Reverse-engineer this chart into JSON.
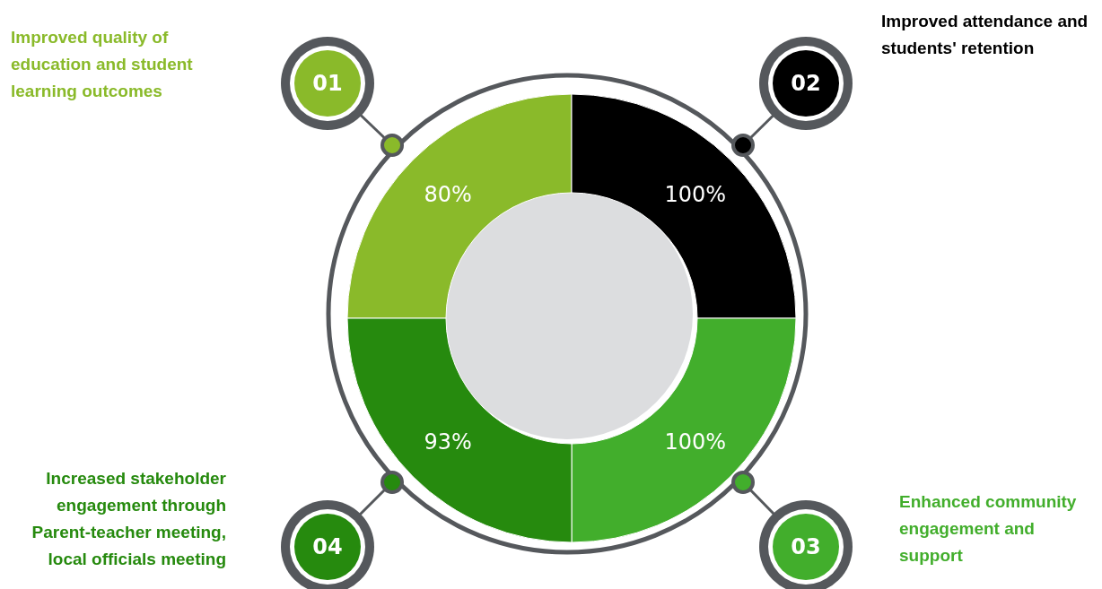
{
  "chart_data": {
    "type": "other",
    "categories": [
      "Improved quality of education and student learning outcomes",
      "Improved attendance and students' retention",
      "Enhanced community engagement and support",
      "Increased stakeholder engagement through Parent-teacher meeting, local officials meeting"
    ],
    "values": [
      80,
      100,
      100,
      93
    ],
    "value_labels": [
      "80%",
      "100%",
      "100%",
      "93%"
    ],
    "colors": [
      "#8aba2a",
      "#000000",
      "#42ae2c",
      "#268a0e"
    ],
    "annotations": [
      "01",
      "02",
      "03",
      "04"
    ]
  }
}
